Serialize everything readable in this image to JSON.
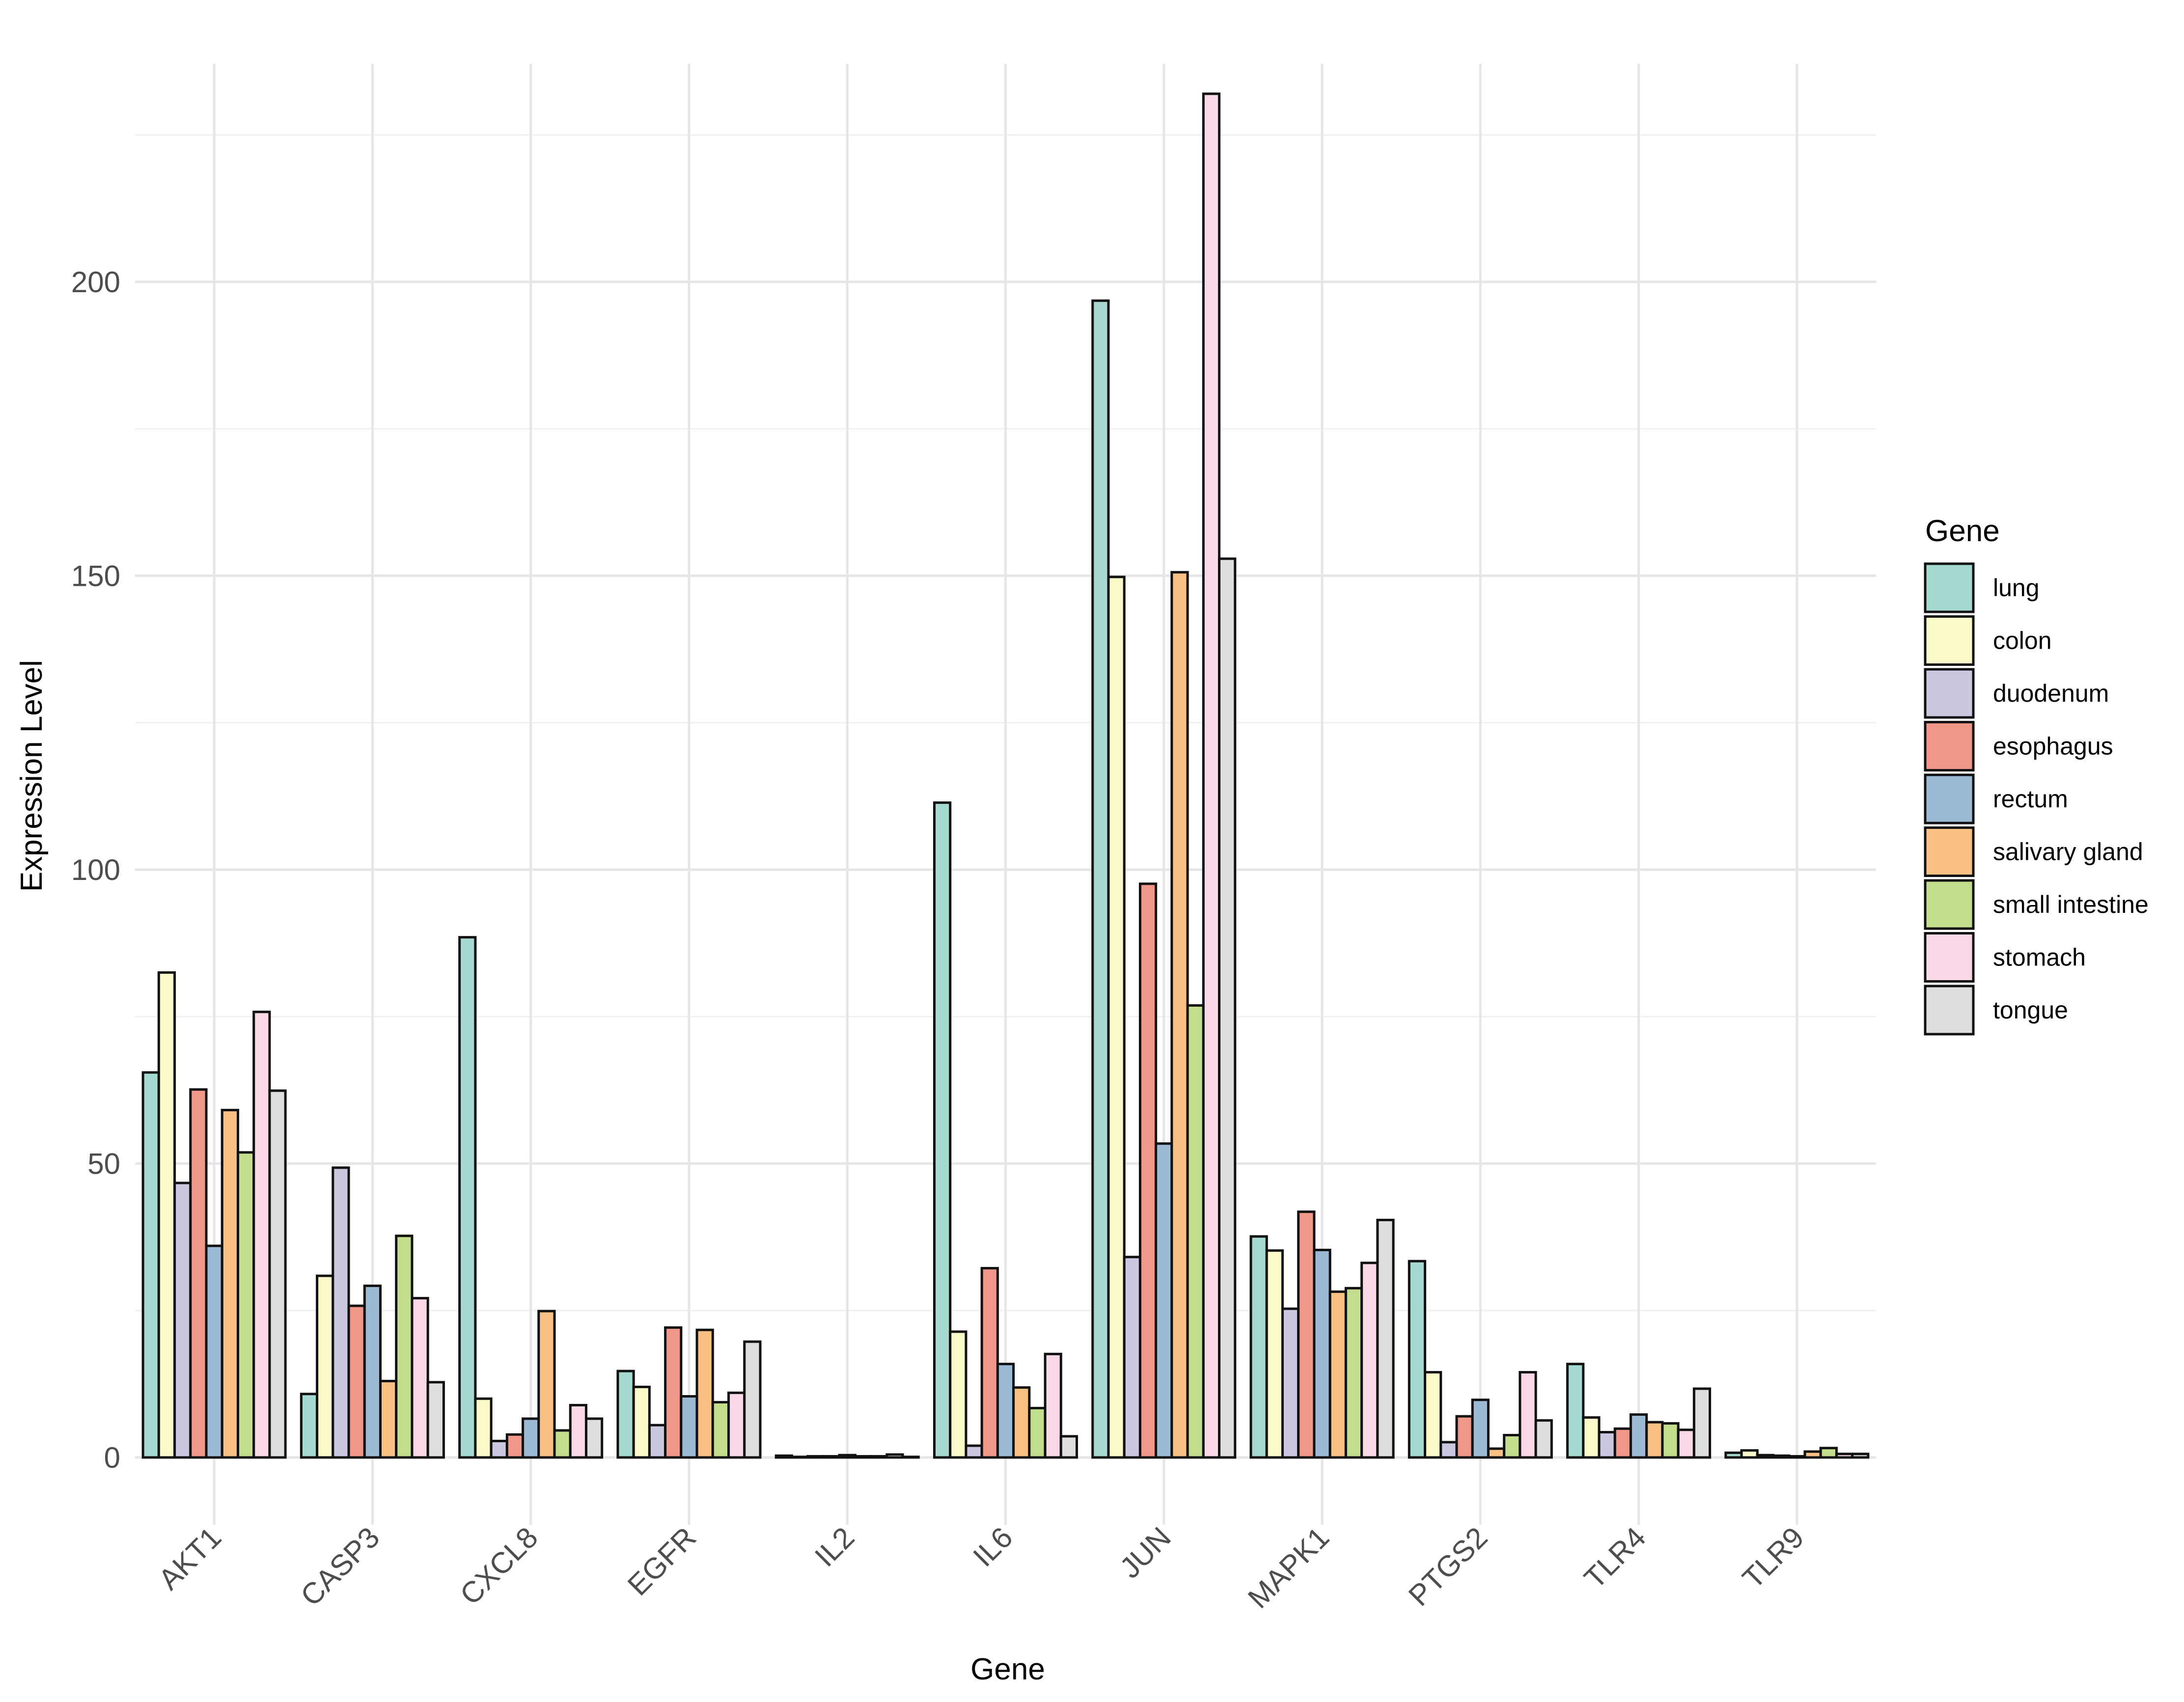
{
  "chart_data": {
    "type": "bar",
    "xlabel": "Gene",
    "ylabel": "Expression Level",
    "legend_title": "Gene",
    "legend_position": "right",
    "grid": true,
    "ylim": [
      -7,
      233
    ],
    "yticks": [
      0,
      50,
      100,
      150,
      200
    ],
    "categories": [
      "AKT1",
      "CASP3",
      "CXCL8",
      "EGFR",
      "IL2",
      "IL6",
      "JUN",
      "MAPK1",
      "PTGS2",
      "TLR4",
      "TLR9"
    ],
    "series": [
      {
        "name": "lung",
        "color": "#A6D9D0",
        "values": [
          65.5,
          10.8,
          88.5,
          14.7,
          0.3,
          111.4,
          196.8,
          37.6,
          33.4,
          15.9,
          0.8
        ]
      },
      {
        "name": "colon",
        "color": "#FAF9C9",
        "values": [
          82.5,
          30.9,
          10.0,
          12.0,
          0.1,
          21.4,
          149.8,
          35.2,
          14.5,
          6.8,
          1.2
        ]
      },
      {
        "name": "duodenum",
        "color": "#C9C8E0",
        "values": [
          46.7,
          49.3,
          2.8,
          5.5,
          0.2,
          2.0,
          34.1,
          25.3,
          2.6,
          4.3,
          0.4
        ]
      },
      {
        "name": "esophagus",
        "color": "#F1978A",
        "values": [
          62.6,
          25.8,
          3.9,
          22.1,
          0.2,
          32.2,
          97.6,
          41.8,
          7.0,
          4.9,
          0.3
        ]
      },
      {
        "name": "rectum",
        "color": "#9CBAD6",
        "values": [
          36.0,
          29.2,
          6.6,
          10.4,
          0.4,
          15.9,
          53.4,
          35.3,
          9.8,
          7.3,
          0.2
        ]
      },
      {
        "name": "salivary gland",
        "color": "#F8C083",
        "values": [
          59.1,
          13.0,
          24.9,
          21.7,
          0.2,
          11.9,
          150.6,
          28.2,
          1.5,
          6.0,
          1.0
        ]
      },
      {
        "name": "small intestine",
        "color": "#C2DE8C",
        "values": [
          51.9,
          37.7,
          4.6,
          9.4,
          0.2,
          8.4,
          76.9,
          28.8,
          3.8,
          5.8,
          1.6
        ]
      },
      {
        "name": "stomach",
        "color": "#F8D8E6",
        "values": [
          75.8,
          27.1,
          8.9,
          11.0,
          0.5,
          17.6,
          232.0,
          33.1,
          14.5,
          4.7,
          0.6
        ]
      },
      {
        "name": "tongue",
        "color": "#DEDEDE",
        "values": [
          62.4,
          12.8,
          6.6,
          19.7,
          0.1,
          3.6,
          152.9,
          40.4,
          6.3,
          11.7,
          0.6
        ]
      }
    ]
  }
}
